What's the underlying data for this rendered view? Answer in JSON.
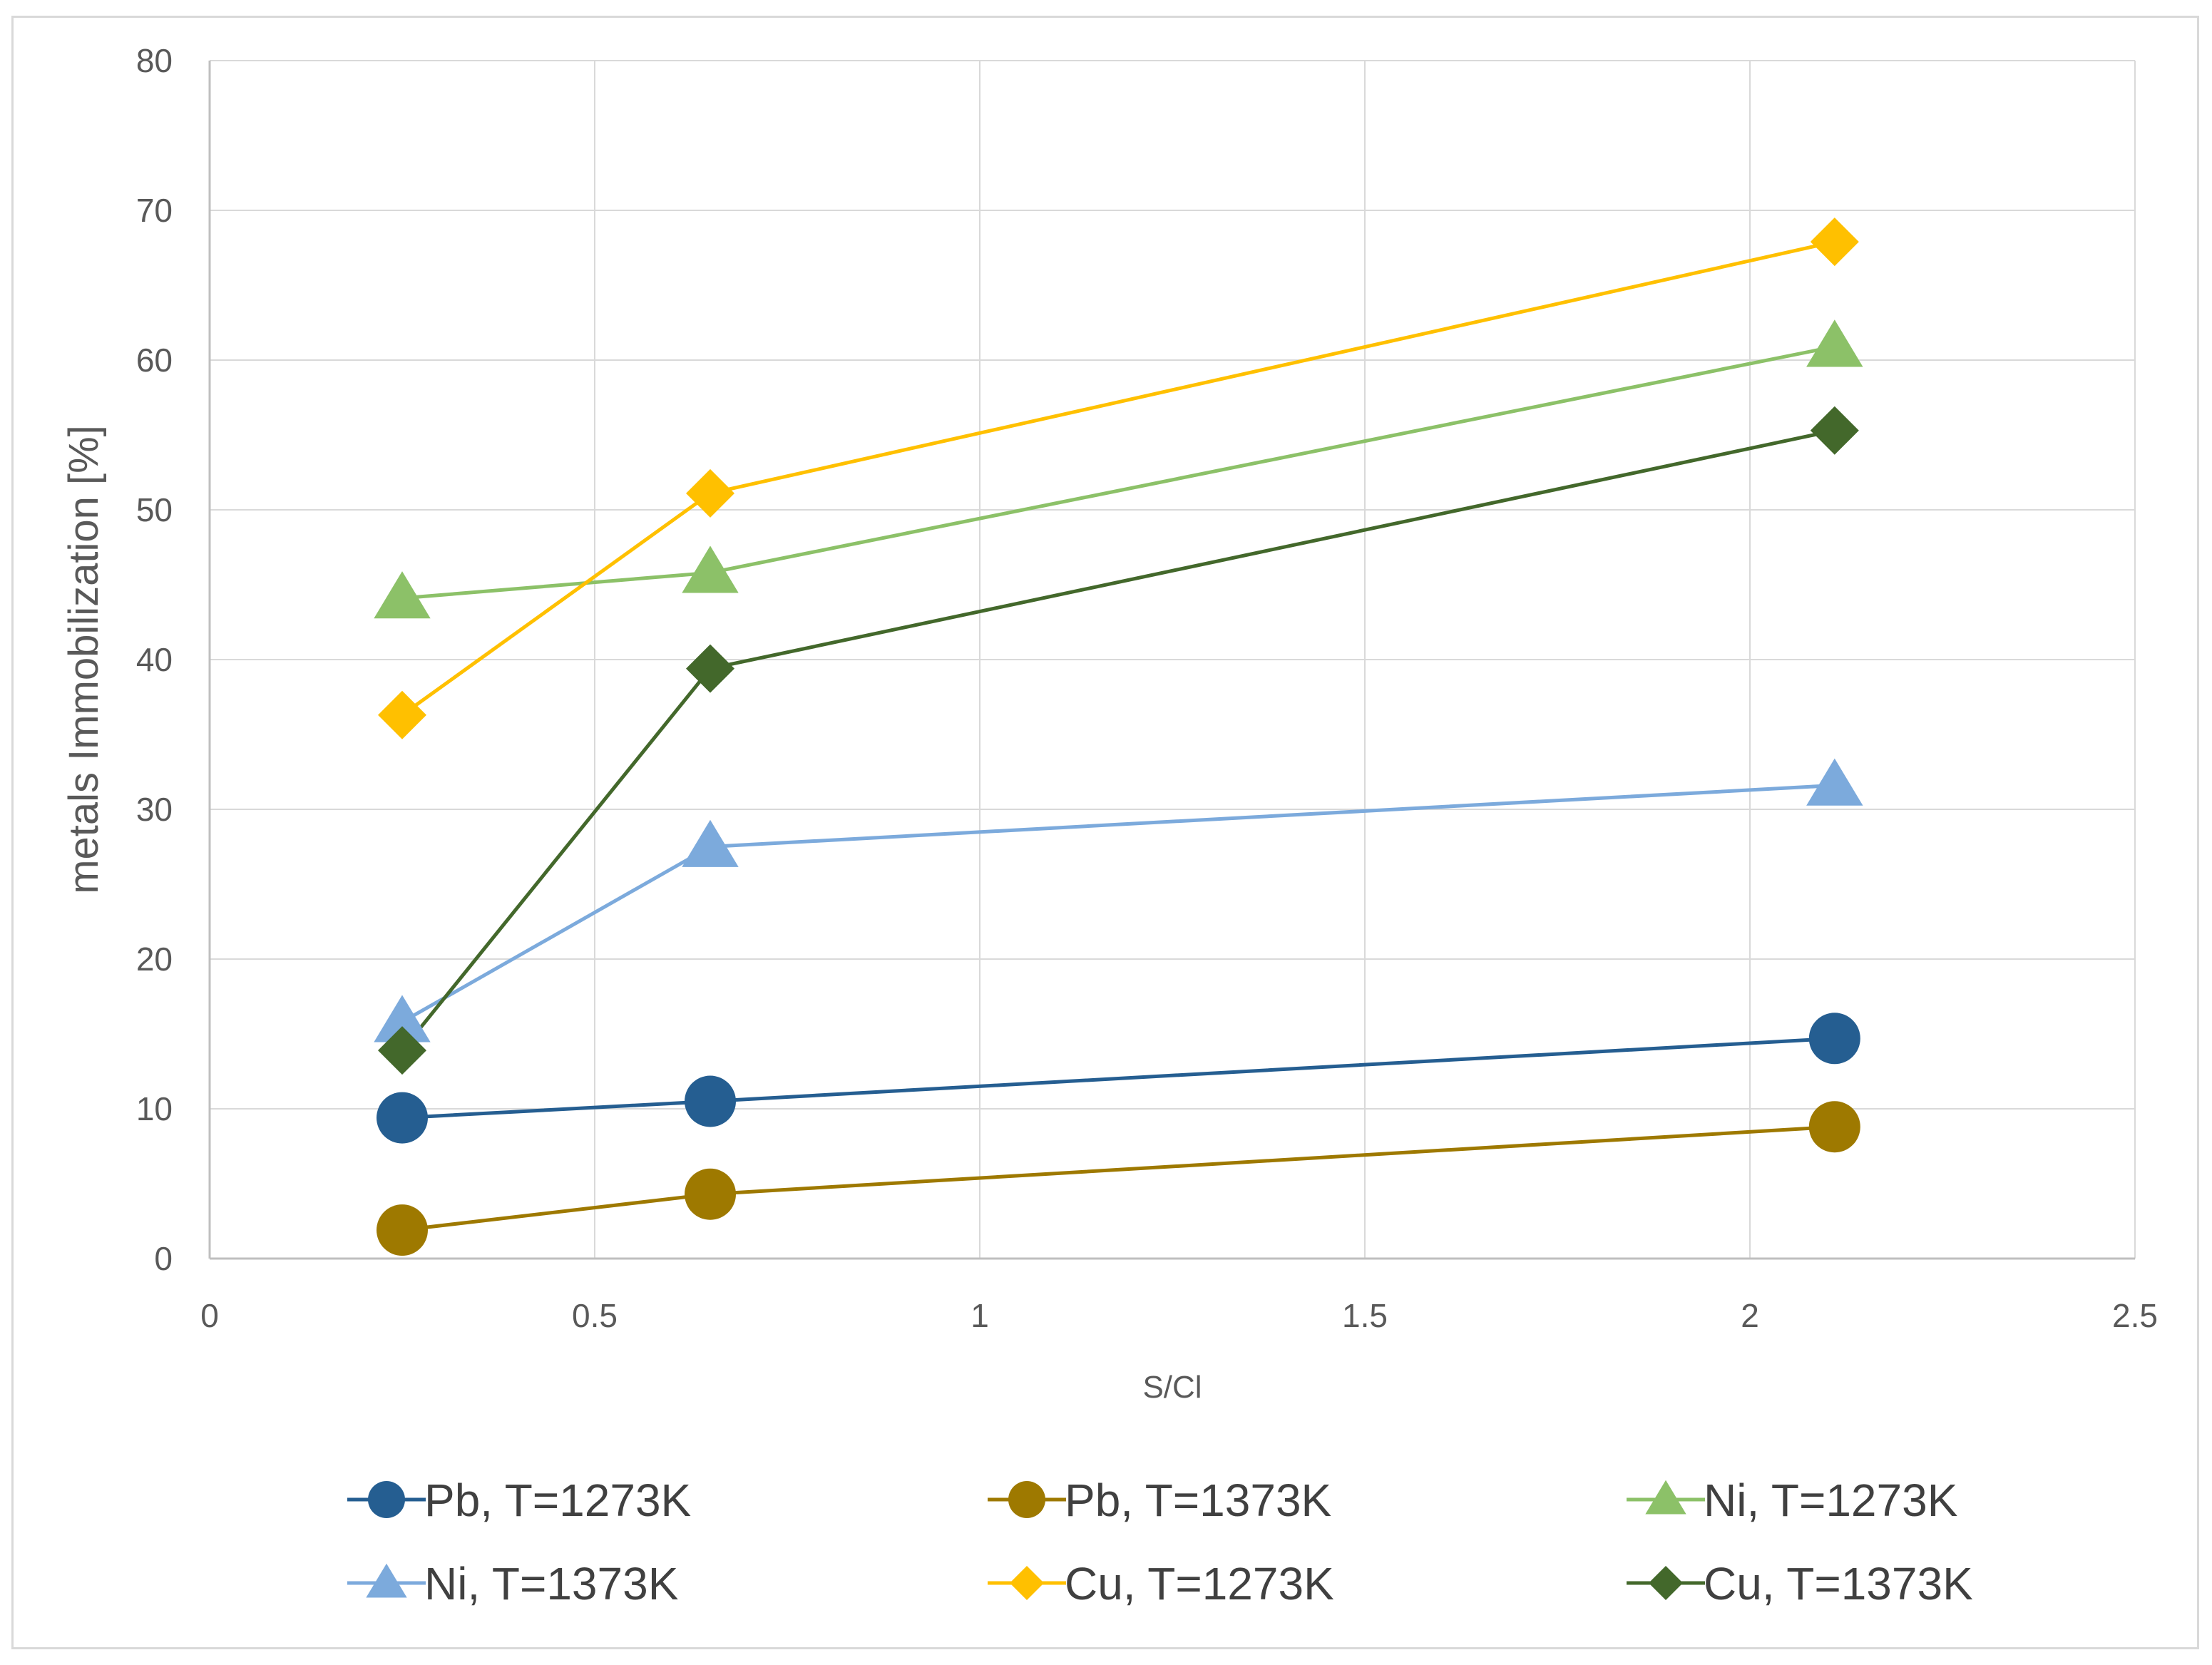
{
  "chart_data": {
    "type": "line",
    "title": "",
    "xlabel": "S/Cl",
    "ylabel": "metals Immobilization [%]",
    "xlim": [
      0,
      2.5
    ],
    "ylim": [
      0,
      80
    ],
    "xticks": [
      0,
      0.5,
      1,
      1.5,
      2,
      2.5
    ],
    "yticks": [
      0,
      10,
      20,
      30,
      40,
      50,
      60,
      70,
      80
    ],
    "xtick_labels": [
      "0",
      "0.5",
      "1",
      "1.5",
      "2",
      "2.5"
    ],
    "ytick_labels": [
      "0",
      "10",
      "20",
      "30",
      "40",
      "50",
      "60",
      "70",
      "80"
    ],
    "grid": true,
    "legend_position": "bottom",
    "x": [
      0.25,
      0.65,
      2.11
    ],
    "series": [
      {
        "name": "Pb, T=1273K",
        "values": [
          9.4,
          10.5,
          14.7
        ],
        "color": "#255e91",
        "marker": "circle"
      },
      {
        "name": "Pb, T=1373K",
        "values": [
          1.9,
          4.3,
          8.8
        ],
        "color": "#9e7900",
        "marker": "circle"
      },
      {
        "name": "Ni, T=1273K",
        "values": [
          44.1,
          45.8,
          60.9
        ],
        "color": "#8cc168",
        "marker": "triangle"
      },
      {
        "name": "Ni, T=1373K",
        "values": [
          15.8,
          27.5,
          31.6
        ],
        "color": "#7caadc",
        "marker": "triangle"
      },
      {
        "name": "Cu, T=1273K",
        "values": [
          36.3,
          51.1,
          67.9
        ],
        "color": "#ffc000",
        "marker": "diamond"
      },
      {
        "name": "Cu, T=1373K",
        "values": [
          13.9,
          39.4,
          55.3
        ],
        "color": "#43682b",
        "marker": "diamond"
      }
    ]
  }
}
